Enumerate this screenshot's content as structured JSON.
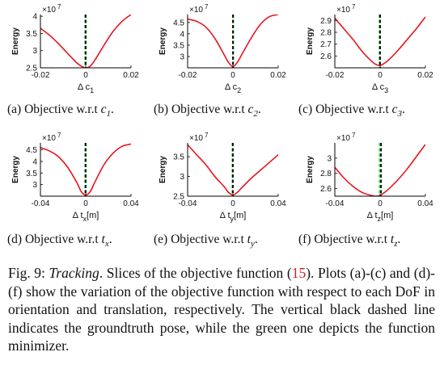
{
  "figure": {
    "caption_label": "Fig. 9:",
    "caption_lead": "Tracking",
    "caption_pre_ref": ". Slices of the objective function (",
    "caption_ref": "15",
    "caption_post_ref": "). Plots (a)-(c) and (d)-(f) show the variation of the objective function with respect to each DoF in orientation and translation, respectively. The vertical black dashed line indicates the groundtruth pose, while the green one depicts the function minimizer."
  },
  "colors": {
    "curve": "#e8141e",
    "groundtruth": "#000000",
    "minimizer": "#2bd94a",
    "axis": "#000000"
  },
  "chart_data": [
    {
      "id": "a",
      "type": "line",
      "ylabel": "Energy",
      "multiplier": "×10 7",
      "xlabel_base": "Δ c",
      "xlabel_sub": "1",
      "xlim": [
        -0.02,
        0.02
      ],
      "ylim": [
        2.5,
        4.05
      ],
      "xticks": [
        -0.02,
        0,
        0.02
      ],
      "xtick_labels": [
        "-0.02",
        "0",
        "0.02"
      ],
      "yticks": [
        2.5,
        3,
        3.5,
        4
      ],
      "ytick_labels": [
        "2.5",
        "3",
        "3.5",
        "4"
      ],
      "series": [
        {
          "x": [
            -0.02,
            -0.016,
            -0.012,
            -0.008,
            -0.004,
            -0.002,
            0,
            0.002,
            0.004,
            0.008,
            0.012,
            0.016,
            0.02
          ],
          "y": [
            3.65,
            3.45,
            3.2,
            2.92,
            2.65,
            2.55,
            2.5,
            2.55,
            2.72,
            3.15,
            3.55,
            3.85,
            4.05
          ]
        }
      ],
      "groundtruth_x": 0,
      "minimizer_x": -0.0003,
      "subcaption_label": "(a) Objective w.r.t ",
      "subcaption_var": "c",
      "subcaption_sub": "1",
      "subcaption_end": "."
    },
    {
      "id": "b",
      "type": "line",
      "ylabel": "Energy",
      "multiplier": "×10 7",
      "xlabel_base": "Δ c",
      "xlabel_sub": "2",
      "xlim": [
        -0.02,
        0.02
      ],
      "ylim": [
        2.5,
        4.85
      ],
      "xticks": [
        -0.02,
        0,
        0.02
      ],
      "xtick_labels": [
        "-0.02",
        "0",
        "0.02"
      ],
      "yticks": [
        3,
        3.5,
        4,
        4.5
      ],
      "ytick_labels": [
        "3",
        "3.5",
        "4",
        "4.5"
      ],
      "series": [
        {
          "x": [
            -0.02,
            -0.016,
            -0.012,
            -0.008,
            -0.004,
            -0.002,
            0,
            0.002,
            0.004,
            0.008,
            0.012,
            0.016,
            0.02
          ],
          "y": [
            4.65,
            4.55,
            4.3,
            3.8,
            3.1,
            2.75,
            2.55,
            2.75,
            3.1,
            3.8,
            4.4,
            4.75,
            4.85
          ]
        }
      ],
      "groundtruth_x": 0,
      "minimizer_x": 0.0002,
      "subcaption_label": "(b) Objective w.r.t ",
      "subcaption_var": "c",
      "subcaption_sub": "2",
      "subcaption_end": "."
    },
    {
      "id": "c",
      "type": "line",
      "ylabel": "Energy",
      "multiplier": "×10 7",
      "xlabel_base": "Δ c",
      "xlabel_sub": "3",
      "xlim": [
        -0.02,
        0.02
      ],
      "ylim": [
        2.5,
        2.95
      ],
      "xticks": [
        -0.02,
        0,
        0.02
      ],
      "xtick_labels": [
        "-0.02",
        "0",
        "0.02"
      ],
      "yticks": [
        2.6,
        2.7,
        2.8,
        2.9
      ],
      "ytick_labels": [
        "2.6",
        "2.7",
        "2.8",
        "2.9"
      ],
      "series": [
        {
          "x": [
            -0.02,
            -0.016,
            -0.012,
            -0.008,
            -0.004,
            -0.002,
            0,
            0.002,
            0.004,
            0.008,
            0.012,
            0.016,
            0.02
          ],
          "y": [
            2.92,
            2.83,
            2.74,
            2.64,
            2.56,
            2.53,
            2.52,
            2.54,
            2.57,
            2.65,
            2.74,
            2.83,
            2.93
          ]
        }
      ],
      "groundtruth_x": 0,
      "minimizer_x": -0.0003,
      "subcaption_label": "(c) Objective w.r.t ",
      "subcaption_var": "c",
      "subcaption_sub": "3",
      "subcaption_end": "."
    },
    {
      "id": "d",
      "type": "line",
      "ylabel": "Energy",
      "multiplier": "×10 7",
      "xlabel_base": "Δ t",
      "xlabel_sub": "x",
      "xlabel_unit": "[m]",
      "xlim": [
        -0.04,
        0.04
      ],
      "ylim": [
        2.5,
        4.8
      ],
      "xticks": [
        -0.04,
        0,
        0.04
      ],
      "xtick_labels": [
        "-0.04",
        "0",
        "0.04"
      ],
      "yticks": [
        3,
        3.5,
        4,
        4.5
      ],
      "ytick_labels": [
        "3",
        "3.5",
        "4",
        "4.5"
      ],
      "series": [
        {
          "x": [
            -0.04,
            -0.032,
            -0.024,
            -0.016,
            -0.008,
            -0.004,
            0,
            0.004,
            0.008,
            0.016,
            0.024,
            0.032,
            0.04
          ],
          "y": [
            4.6,
            4.45,
            4.2,
            3.75,
            3.1,
            2.7,
            2.55,
            2.7,
            3.1,
            3.85,
            4.35,
            4.65,
            4.75
          ]
        }
      ],
      "groundtruth_x": 0,
      "minimizer_x": -0.0006,
      "subcaption_label": "(d) Objective w.r.t ",
      "subcaption_var": "t",
      "subcaption_sub": "x",
      "subcaption_end": "."
    },
    {
      "id": "e",
      "type": "line",
      "ylabel": "Energy",
      "multiplier": "×10 7",
      "xlabel_base": "Δ t",
      "xlabel_sub": "y",
      "xlabel_unit": "[m]",
      "xlim": [
        -0.04,
        0.04
      ],
      "ylim": [
        2.5,
        3.85
      ],
      "xticks": [
        -0.04,
        0,
        0.04
      ],
      "xtick_labels": [
        "-0.04",
        "0",
        "0.04"
      ],
      "yticks": [
        2.5,
        3,
        3.5
      ],
      "ytick_labels": [
        "2.5",
        "3",
        "3.5"
      ],
      "series": [
        {
          "x": [
            -0.04,
            -0.032,
            -0.024,
            -0.016,
            -0.008,
            -0.004,
            0,
            0.004,
            0.008,
            0.016,
            0.024,
            0.032,
            0.04
          ],
          "y": [
            3.8,
            3.55,
            3.3,
            3.0,
            2.75,
            2.6,
            2.53,
            2.6,
            2.72,
            2.95,
            3.15,
            3.35,
            3.55
          ]
        }
      ],
      "groundtruth_x": 0,
      "minimizer_x": -0.0005,
      "subcaption_label": "(e) Objective w.r.t ",
      "subcaption_var": "t",
      "subcaption_sub": "y",
      "subcaption_end": "."
    },
    {
      "id": "f",
      "type": "line",
      "ylabel": "Energy",
      "multiplier": "×10 7",
      "xlabel_base": "Δ t",
      "xlabel_sub": "z",
      "xlabel_unit": "[m]",
      "xlim": [
        -0.04,
        0.04
      ],
      "ylim": [
        2.5,
        3.2
      ],
      "xticks": [
        -0.04,
        0,
        0.04
      ],
      "xtick_labels": [
        "-0.04",
        "0",
        "0.04"
      ],
      "yticks": [
        2.6,
        2.8,
        3
      ],
      "ytick_labels": [
        "2.6",
        "2.8",
        "3"
      ],
      "series": [
        {
          "x": [
            -0.04,
            -0.032,
            -0.024,
            -0.016,
            -0.008,
            -0.004,
            0,
            0.004,
            0.008,
            0.016,
            0.024,
            0.032,
            0.04
          ],
          "y": [
            2.88,
            2.74,
            2.63,
            2.55,
            2.51,
            2.5,
            2.51,
            2.55,
            2.6,
            2.72,
            2.86,
            3.02,
            3.18
          ]
        }
      ],
      "groundtruth_x": 0.0008,
      "minimizer_x": -0.0004,
      "subcaption_label": "(f) Objective w.r.t ",
      "subcaption_var": "t",
      "subcaption_sub": "z",
      "subcaption_end": "."
    }
  ]
}
